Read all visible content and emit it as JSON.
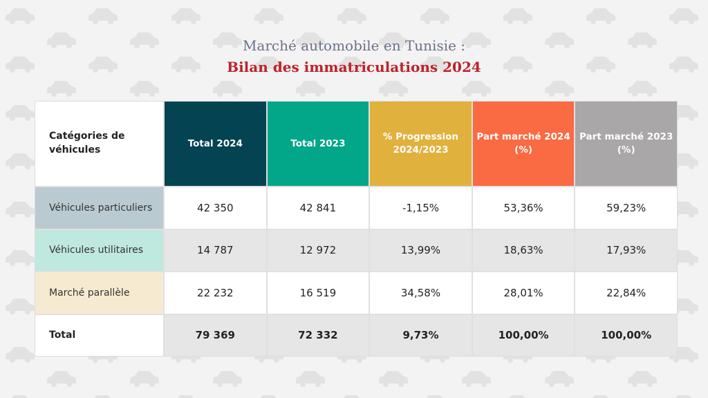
{
  "title": {
    "line1": "Marché automobile en Tunisie :",
    "line2": "Bilan des immatriculations 2024"
  },
  "colors": {
    "total2024": "#034352",
    "total2023": "#02a689",
    "progression": "#e1b13d",
    "part2024": "#fa6a43",
    "part2023": "#a9a7a8",
    "accent_title": "#c0202a"
  },
  "headers": [
    "Catégories de véhicules",
    "Total 2024",
    "Total 2023",
    "% Progression 2024/2023",
    "Part marché 2024 (%)",
    "Part marché 2023 (%)"
  ],
  "rows": [
    {
      "category": "Véhicules particuliers",
      "values": [
        "42 350",
        "42 841",
        "-1,15%",
        "53,36%",
        "59,23%"
      ]
    },
    {
      "category": "Véhicules utilitaires",
      "values": [
        "14 787",
        "12 972",
        "13,99%",
        "18,63%",
        "17,93%"
      ]
    },
    {
      "category": "Marché parallèle",
      "values": [
        "22 232",
        "16 519",
        "34,58%",
        "28,01%",
        "22,84%"
      ]
    },
    {
      "category": "Total",
      "values": [
        "79 369",
        "72 332",
        "9,73%",
        "100,00%",
        "100,00%"
      ]
    }
  ],
  "background_icon": "car-icon"
}
